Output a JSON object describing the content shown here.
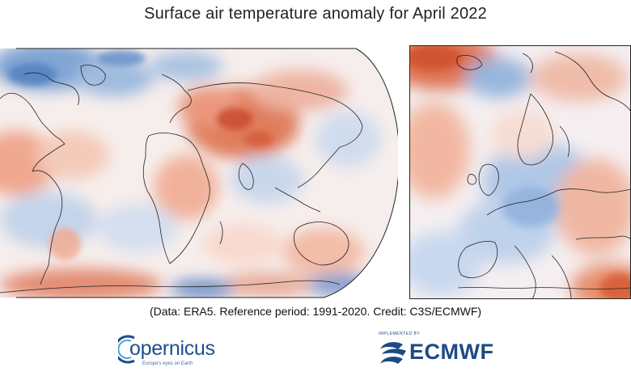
{
  "title": "Surface air temperature anomaly for April 2022",
  "credit": "(Data: ERA5.  Reference period: 1991-2020.  Credit: C3S/ECMWF)",
  "maps": {
    "global": {
      "region": "World",
      "projection": "Robinson"
    },
    "europe": {
      "region": "Europe"
    }
  },
  "colors": {
    "warm_anomaly": "#e4774e",
    "cool_anomaly": "#5f8fc8",
    "neutral": "#f4f1f3",
    "coastline": "#222222"
  },
  "logos": {
    "copernicus": {
      "text": "opernicus",
      "subtitle": "Europe's eyes on Earth",
      "icon": "copernicus-c-icon"
    },
    "ecmwf": {
      "small_text": "IMPLEMENTED BY",
      "text": "ECMWF",
      "icon": "ecmwf-wave-icon"
    }
  }
}
